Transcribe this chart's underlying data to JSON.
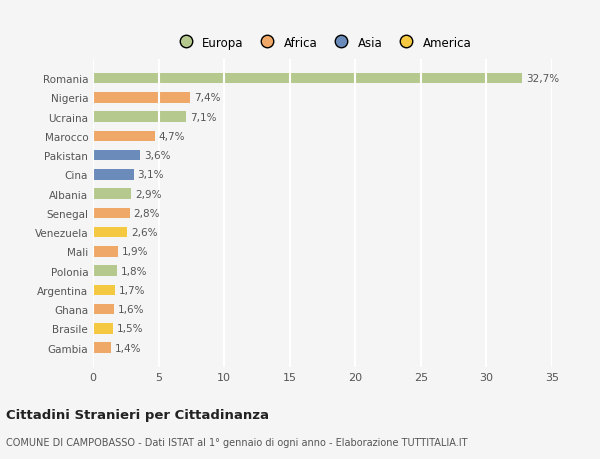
{
  "countries_clean": [
    "Romania",
    "Nigeria",
    "Ucraina",
    "Marocco",
    "Pakistan",
    "Cina",
    "Albania",
    "Senegal",
    "Venezuela",
    "Mali",
    "Polonia",
    "Argentina",
    "Ghana",
    "Brasile",
    "Gambia"
  ],
  "values": [
    32.7,
    7.4,
    7.1,
    4.7,
    3.6,
    3.1,
    2.9,
    2.8,
    2.6,
    1.9,
    1.8,
    1.7,
    1.6,
    1.5,
    1.4
  ],
  "labels": [
    "32,7%",
    "7,4%",
    "7,1%",
    "4,7%",
    "3,6%",
    "3,1%",
    "2,9%",
    "2,8%",
    "2,6%",
    "1,9%",
    "1,8%",
    "1,7%",
    "1,6%",
    "1,5%",
    "1,4%"
  ],
  "continents": [
    "Europa",
    "Africa",
    "Europa",
    "Africa",
    "Asia",
    "Asia",
    "Europa",
    "Africa",
    "America",
    "Africa",
    "Europa",
    "America",
    "Africa",
    "America",
    "Africa"
  ],
  "colors": {
    "Europa": "#b5c98e",
    "Africa": "#f0a868",
    "Asia": "#6b8cba",
    "America": "#f5c842"
  },
  "xlim": [
    0,
    35
  ],
  "xticks": [
    0,
    5,
    10,
    15,
    20,
    25,
    30,
    35
  ],
  "title": "Cittadini Stranieri per Cittadinanza",
  "subtitle": "COMUNE DI CAMPOBASSO - Dati ISTAT al 1° gennaio di ogni anno - Elaborazione TUTTITALIA.IT",
  "bg_color": "#f5f5f5",
  "grid_color": "#ffffff",
  "legend_order": [
    "Europa",
    "Africa",
    "Asia",
    "America"
  ]
}
